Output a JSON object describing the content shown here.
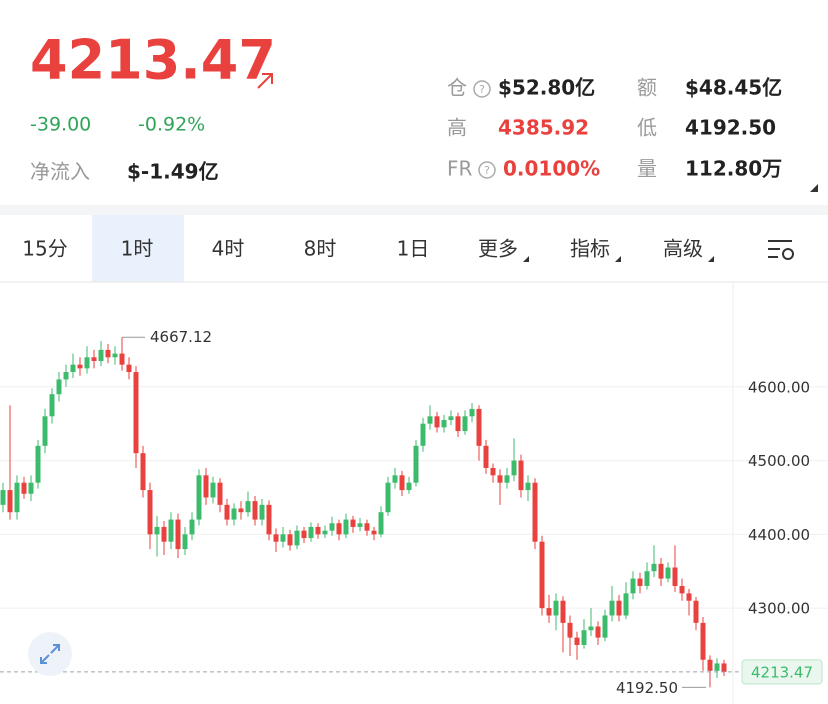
{
  "header": {
    "price": "4213.47",
    "change": "-39.00",
    "change_pct": "-0.92%",
    "net_inflow_label": "净流入",
    "net_inflow": "$-1.49亿",
    "stats": [
      {
        "label": "仓",
        "value": "$52.80亿"
      },
      {
        "label": "额",
        "value": "$48.45亿"
      },
      {
        "label": "高",
        "value": "4385.92"
      },
      {
        "label": "低",
        "value": "4192.50"
      },
      {
        "label": "FR",
        "value": "0.0100%"
      },
      {
        "label": "量",
        "value": "112.80万"
      }
    ]
  },
  "tabs": [
    "15分",
    "1时",
    "4时",
    "8时",
    "1日",
    "更多",
    "指标",
    "高级"
  ],
  "chart_data": {
    "type": "candlestick",
    "up_color": "#3dbb6c",
    "down_color": "#e8413e",
    "ylim": [
      4170,
      4738
    ],
    "yticks": [
      {
        "value": 4300,
        "label": "4300.00"
      },
      {
        "value": 4400,
        "label": "4400.00"
      },
      {
        "value": 4500,
        "label": "4500.00"
      },
      {
        "value": 4600,
        "label": "4600.00"
      }
    ],
    "grid": true,
    "max_label": 4667.12,
    "min_label": {
      "value": 4192.5,
      "label": "4192.50"
    },
    "last_price": 4213.47,
    "candles": [
      [
        4440,
        4470,
        4430,
        4460
      ],
      [
        4460,
        4575,
        4420,
        4430
      ],
      [
        4430,
        4480,
        4420,
        4470
      ],
      [
        4470,
        4478,
        4448,
        4455
      ],
      [
        4455,
        4480,
        4445,
        4470
      ],
      [
        4470,
        4528,
        4462,
        4520
      ],
      [
        4520,
        4570,
        4510,
        4560
      ],
      [
        4560,
        4598,
        4550,
        4590
      ],
      [
        4590,
        4620,
        4580,
        4610
      ],
      [
        4610,
        4630,
        4600,
        4620
      ],
      [
        4620,
        4645,
        4612,
        4630
      ],
      [
        4630,
        4640,
        4615,
        4625
      ],
      [
        4625,
        4655,
        4618,
        4640
      ],
      [
        4640,
        4650,
        4625,
        4635
      ],
      [
        4635,
        4662,
        4628,
        4650
      ],
      [
        4650,
        4658,
        4632,
        4640
      ],
      [
        4640,
        4655,
        4630,
        4645
      ],
      [
        4645,
        4667.12,
        4622,
        4630
      ],
      [
        4630,
        4640,
        4610,
        4620
      ],
      [
        4620,
        4628,
        4490,
        4510
      ],
      [
        4510,
        4520,
        4450,
        4460
      ],
      [
        4460,
        4470,
        4380,
        4400
      ],
      [
        4400,
        4425,
        4370,
        4410
      ],
      [
        4410,
        4418,
        4372,
        4390
      ],
      [
        4390,
        4430,
        4380,
        4420
      ],
      [
        4420,
        4428,
        4368,
        4380
      ],
      [
        4380,
        4410,
        4372,
        4400
      ],
      [
        4400,
        4430,
        4392,
        4420
      ],
      [
        4420,
        4488,
        4412,
        4480
      ],
      [
        4480,
        4490,
        4440,
        4450
      ],
      [
        4450,
        4478,
        4442,
        4470
      ],
      [
        4470,
        4476,
        4430,
        4440
      ],
      [
        4440,
        4448,
        4412,
        4420
      ],
      [
        4420,
        4442,
        4412,
        4435
      ],
      [
        4435,
        4445,
        4420,
        4430
      ],
      [
        4430,
        4458,
        4424,
        4445
      ],
      [
        4445,
        4452,
        4412,
        4420
      ],
      [
        4420,
        4448,
        4412,
        4440
      ],
      [
        4440,
        4446,
        4392,
        4400
      ],
      [
        4400,
        4408,
        4376,
        4390
      ],
      [
        4390,
        4410,
        4382,
        4400
      ],
      [
        4400,
        4406,
        4378,
        4385
      ],
      [
        4385,
        4412,
        4380,
        4405
      ],
      [
        4405,
        4410,
        4388,
        4395
      ],
      [
        4395,
        4416,
        4390,
        4410
      ],
      [
        4410,
        4415,
        4394,
        4400
      ],
      [
        4400,
        4412,
        4395,
        4405
      ],
      [
        4405,
        4424,
        4398,
        4415
      ],
      [
        4415,
        4420,
        4392,
        4400
      ],
      [
        4400,
        4428,
        4395,
        4420
      ],
      [
        4420,
        4425,
        4402,
        4410
      ],
      [
        4410,
        4422,
        4404,
        4415
      ],
      [
        4415,
        4420,
        4398,
        4405
      ],
      [
        4405,
        4410,
        4392,
        4400
      ],
      [
        4400,
        4438,
        4396,
        4430
      ],
      [
        4430,
        4478,
        4425,
        4470
      ],
      [
        4470,
        4490,
        4462,
        4480
      ],
      [
        4480,
        4486,
        4452,
        4460
      ],
      [
        4460,
        4478,
        4455,
        4470
      ],
      [
        4470,
        4528,
        4465,
        4520
      ],
      [
        4520,
        4558,
        4512,
        4550
      ],
      [
        4550,
        4575,
        4542,
        4560
      ],
      [
        4560,
        4566,
        4538,
        4545
      ],
      [
        4545,
        4562,
        4538,
        4555
      ],
      [
        4555,
        4568,
        4548,
        4560
      ],
      [
        4560,
        4565,
        4532,
        4540
      ],
      [
        4540,
        4568,
        4535,
        4560
      ],
      [
        4560,
        4578,
        4552,
        4570
      ],
      [
        4570,
        4575,
        4500,
        4520
      ],
      [
        4520,
        4528,
        4482,
        4490
      ],
      [
        4490,
        4496,
        4470,
        4480
      ],
      [
        4480,
        4488,
        4440,
        4470
      ],
      [
        4470,
        4490,
        4462,
        4480
      ],
      [
        4480,
        4530,
        4472,
        4500
      ],
      [
        4500,
        4508,
        4450,
        4460
      ],
      [
        4460,
        4480,
        4445,
        4470
      ],
      [
        4470,
        4476,
        4380,
        4390
      ],
      [
        4390,
        4398,
        4290,
        4300
      ],
      [
        4300,
        4318,
        4280,
        4290
      ],
      [
        4290,
        4320,
        4270,
        4310
      ],
      [
        4310,
        4316,
        4240,
        4280
      ],
      [
        4280,
        4290,
        4235,
        4260
      ],
      [
        4260,
        4268,
        4230,
        4250
      ],
      [
        4250,
        4285,
        4245,
        4270
      ],
      [
        4270,
        4300,
        4262,
        4275
      ],
      [
        4275,
        4282,
        4250,
        4260
      ],
      [
        4260,
        4298,
        4255,
        4290
      ],
      [
        4290,
        4330,
        4282,
        4310
      ],
      [
        4310,
        4318,
        4282,
        4290
      ],
      [
        4290,
        4335,
        4285,
        4320
      ],
      [
        4320,
        4350,
        4312,
        4340
      ],
      [
        4340,
        4348,
        4320,
        4330
      ],
      [
        4330,
        4362,
        4325,
        4350
      ],
      [
        4350,
        4385,
        4342,
        4360
      ],
      [
        4360,
        4368,
        4330,
        4340
      ],
      [
        4340,
        4362,
        4335,
        4355
      ],
      [
        4355,
        4385,
        4322,
        4330
      ],
      [
        4330,
        4340,
        4310,
        4320
      ],
      [
        4320,
        4326,
        4290,
        4310
      ],
      [
        4310,
        4315,
        4270,
        4280
      ],
      [
        4280,
        4288,
        4215,
        4230
      ],
      [
        4230,
        4236,
        4192.5,
        4215
      ],
      [
        4215,
        4232,
        4205,
        4225
      ],
      [
        4225,
        4230,
        4208,
        4213.47
      ]
    ]
  }
}
